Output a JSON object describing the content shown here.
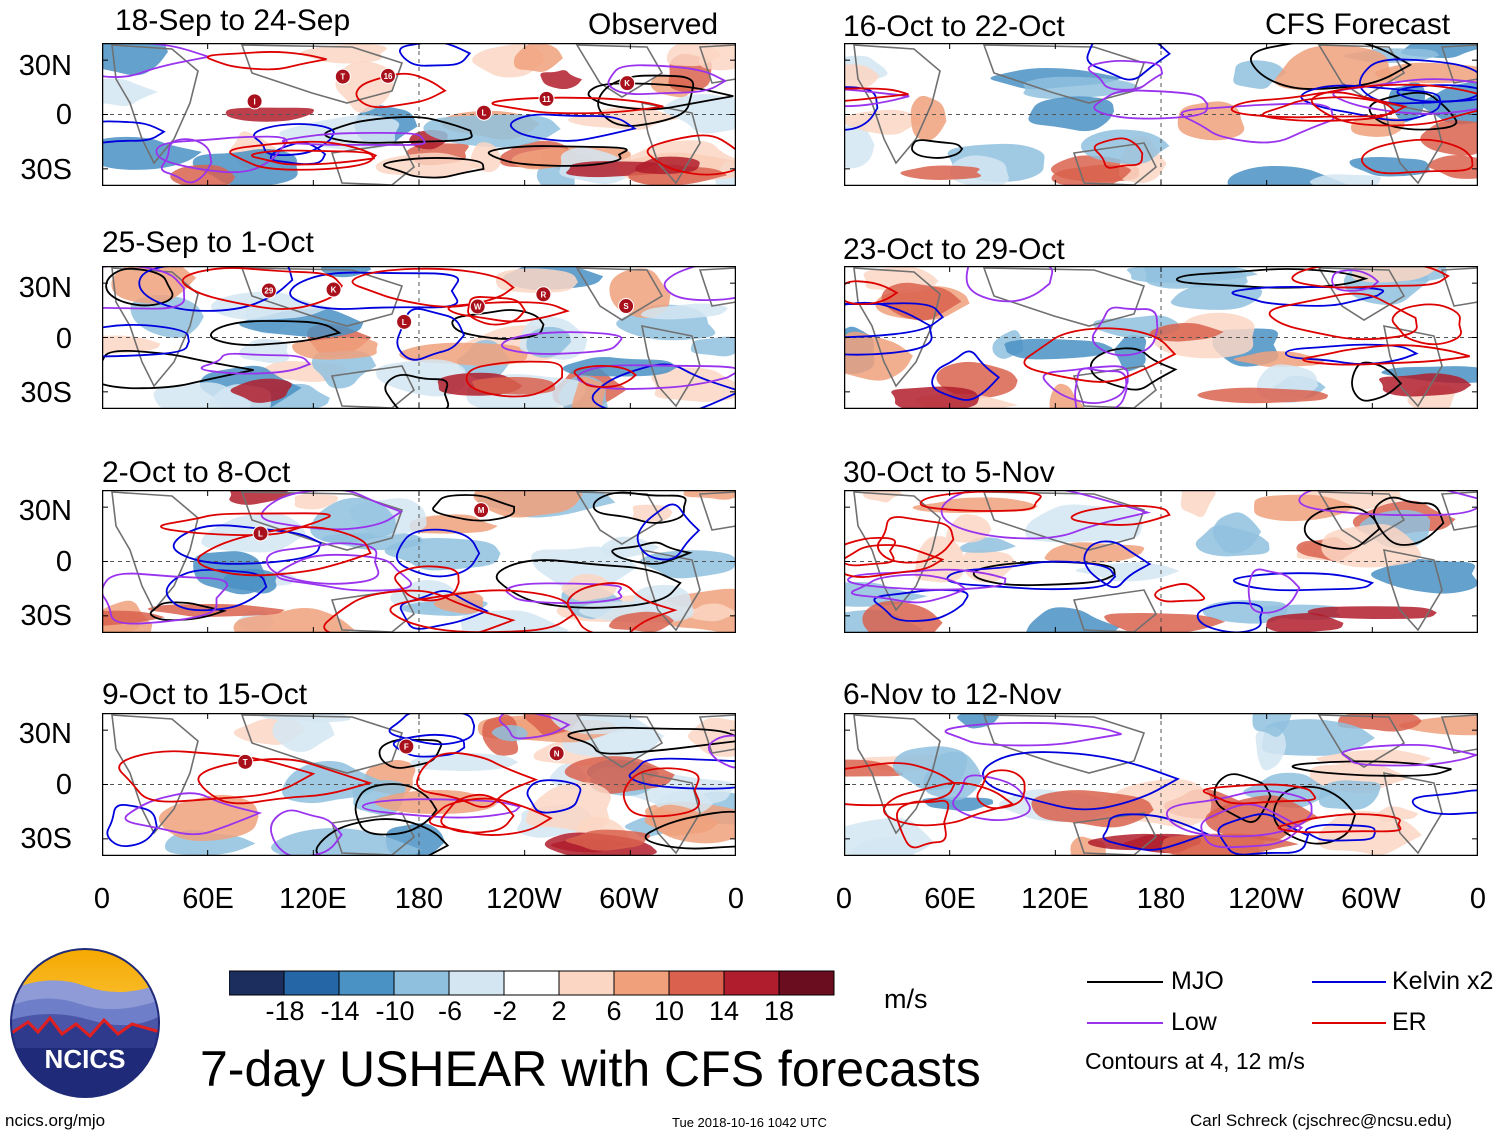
{
  "header": {
    "observed_label": "Observed",
    "forecast_label": "CFS Forecast"
  },
  "observed_panels": [
    {
      "title": "18-Sep to 24-Sep",
      "storms": [
        "I",
        "T",
        "16",
        "L",
        "11",
        "K"
      ]
    },
    {
      "title": "25-Sep to 1-Oct",
      "storms": [
        "29",
        "K",
        "L",
        "W",
        "R",
        "S"
      ]
    },
    {
      "title": "2-Oct to 8-Oct",
      "storms": [
        "L",
        "M"
      ]
    },
    {
      "title": "9-Oct to 15-Oct",
      "storms": [
        "T",
        "F",
        "N"
      ]
    }
  ],
  "forecast_panels": [
    {
      "title": "16-Oct to 22-Oct"
    },
    {
      "title": "23-Oct to 29-Oct"
    },
    {
      "title": "30-Oct to 5-Nov"
    },
    {
      "title": "6-Nov to 12-Nov"
    }
  ],
  "lat_labels": [
    "30N",
    "0",
    "30S"
  ],
  "lon_labels": [
    "0",
    "60E",
    "120E",
    "180",
    "120W",
    "60W",
    "0"
  ],
  "colorbar": {
    "colors": [
      "#1b2e5e",
      "#2566a7",
      "#4a91c4",
      "#8fc1de",
      "#d4e6f2",
      "#ffffff",
      "#fbd6c3",
      "#f0a17c",
      "#d9614d",
      "#b01d2c",
      "#6a0d1e"
    ],
    "labels": [
      "-18",
      "-14",
      "-10",
      "-6",
      "-2",
      "2",
      "6",
      "10",
      "14",
      "18"
    ],
    "units": "m/s"
  },
  "legend": {
    "items": [
      {
        "label": "MJO",
        "color": "#000000"
      },
      {
        "label": "Kelvin x2",
        "color": "#0000dd"
      },
      {
        "label": "Low",
        "color": "#9933ee"
      },
      {
        "label": "ER",
        "color": "#dd0000"
      }
    ],
    "contours_note": "Contours at 4, 12 m/s"
  },
  "logo": {
    "text": "NCICS"
  },
  "footer": {
    "main_title": "7-day USHEAR with CFS forecasts",
    "website": "ncics.org/mjo",
    "timestamp": "Tue 2018-10-16 1042 UTC",
    "author": "Carl Schreck (cjschrec@ncsu.edu)"
  }
}
